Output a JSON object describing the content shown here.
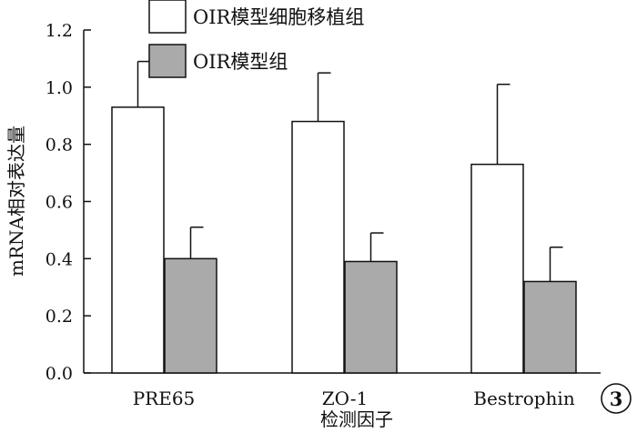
{
  "chart_data": {
    "type": "bar",
    "title": "",
    "xlabel": "检测因子",
    "ylabel": "mRNA相对表达量",
    "ylim": [
      0,
      1.2
    ],
    "yticks": [
      "0.0",
      "0.2",
      "0.4",
      "0.6",
      "0.8",
      "1.0",
      "1.2"
    ],
    "categories": [
      "PRE65",
      "ZO-1",
      "Bestrophin"
    ],
    "series": [
      {
        "name": "OIR模型细胞移植组",
        "color": "#ffffff",
        "values": [
          0.93,
          0.88,
          0.73
        ],
        "error": [
          0.16,
          0.17,
          0.28
        ]
      },
      {
        "name": "OIR模型组",
        "color": "#aaaaaa",
        "values": [
          0.4,
          0.39,
          0.32
        ],
        "error": [
          0.11,
          0.1,
          0.12
        ]
      }
    ],
    "grid": false,
    "legend_position": "top",
    "panel_label": "3"
  }
}
